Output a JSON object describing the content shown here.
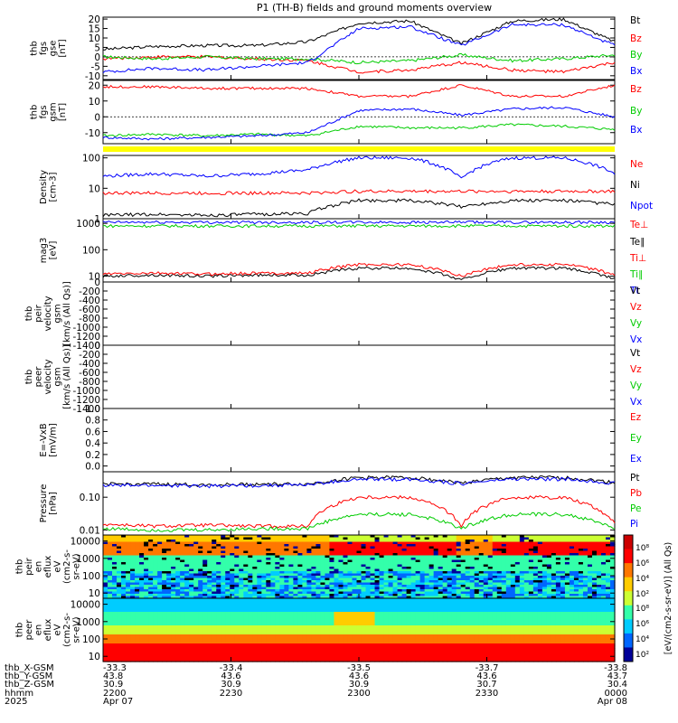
{
  "title": "P1 (TH-B) fields and ground moments overview",
  "chart_data": {
    "type": "line",
    "title": "P1 (TH-B) fields and ground moments overview",
    "time_axis": {
      "rows": [
        {
          "label": "thb_X-GSM",
          "values": [
            "-33.3",
            "-33.4",
            "-33.5",
            "-33.7",
            "-33.8"
          ]
        },
        {
          "label": "thb_Y-GSM",
          "values": [
            "43.8",
            "43.6",
            "43.6",
            "43.6",
            "43.7"
          ]
        },
        {
          "label": "thb_Z-GSM",
          "values": [
            "30.9",
            "30.9",
            "30.9",
            "30.7",
            "30.4"
          ]
        },
        {
          "label": "hhmm",
          "values": [
            "2200",
            "2230",
            "2300",
            "2330",
            "0000"
          ]
        },
        {
          "label": "2025",
          "values": [
            "Apr 07",
            "",
            "",
            "",
            "Apr 08"
          ]
        }
      ]
    },
    "panels": [
      {
        "id": "fgs-gse",
        "ylabel": [
          "thb",
          "fgs",
          "gse",
          "[nT]"
        ],
        "yscale": "linear",
        "ylim": [
          -12,
          21
        ],
        "ticks": [
          "20",
          "15",
          "10",
          "5",
          "0",
          "-5",
          "-10"
        ],
        "tick_values": [
          20,
          15,
          10,
          5,
          0,
          -5,
          -10
        ],
        "dashed_zero": true,
        "series": [
          {
            "name": "Bt",
            "color": "#000000",
            "values": [
              4,
              5.5,
              6,
              6,
              8,
              18,
              19,
              7,
              19,
              20,
              8
            ]
          },
          {
            "name": "Bz",
            "color": "#ff0000",
            "values": [
              -1,
              0,
              0,
              -1,
              -2,
              -8,
              -7,
              -3,
              -7,
              -8,
              -3
            ]
          },
          {
            "name": "By",
            "color": "#00cc00",
            "values": [
              0,
              -1,
              0,
              -1,
              -1,
              -3,
              -2,
              1,
              -2,
              -1,
              1
            ]
          },
          {
            "name": "Bx",
            "color": "#0000ff",
            "values": [
              -8,
              -6,
              -7,
              -5,
              -3,
              15,
              16,
              6,
              17,
              17,
              6
            ]
          }
        ]
      },
      {
        "id": "fgs-gsm",
        "ylabel": [
          "thb",
          "fgs",
          "gsm",
          "[nT]"
        ],
        "yscale": "linear",
        "ylim": [
          -17,
          23
        ],
        "ticks": [
          "20",
          "10",
          "0",
          "-10"
        ],
        "tick_values": [
          20,
          10,
          0,
          -10
        ],
        "dashed_zero": true,
        "series": [
          {
            "name": "Bz",
            "color": "#ff0000",
            "values": [
              19,
              19,
              18,
              18,
              18,
              13,
              13,
              20,
              13,
              13,
              20
            ]
          },
          {
            "name": "By",
            "color": "#00cc00",
            "values": [
              -12,
              -11,
              -12,
              -11,
              -12,
              -6,
              -7,
              -7,
              -5,
              -6,
              -8
            ]
          },
          {
            "name": "Bx",
            "color": "#0000ff",
            "values": [
              -13,
              -14,
              -13,
              -12,
              -10,
              4,
              5,
              1,
              5,
              6,
              0
            ]
          }
        ]
      },
      {
        "id": "density",
        "ylabel": [
          "Density",
          "[cm-3]"
        ],
        "yscale": "log",
        "ylim": [
          1,
          120
        ],
        "ticks": [
          "100",
          "10",
          "1"
        ],
        "tick_values": [
          100,
          10,
          1
        ],
        "series": [
          {
            "name": "Ne",
            "color": "#ff0000",
            "values": [
              7,
              7,
              7,
              7,
              7,
              8,
              8,
              8,
              8,
              8,
              8
            ]
          },
          {
            "name": "Ni",
            "color": "#000000",
            "values": [
              1.3,
              1.4,
              1.3,
              1.4,
              1.5,
              4,
              4,
              2.5,
              4,
              4,
              3
            ]
          },
          {
            "name": "Npot",
            "color": "#0000ff",
            "values": [
              25,
              30,
              25,
              30,
              40,
              100,
              100,
              20,
              100,
              100,
              30
            ]
          },
          {
            "name": "Te⊥",
            "color": "#ff0000",
            "values": []
          }
        ]
      },
      {
        "id": "temperature",
        "ylabel": [
          "mag3",
          "[eV]"
        ],
        "yscale": "log",
        "ylim": [
          6,
          1500
        ],
        "ticks": [
          "1000",
          "100",
          "10"
        ],
        "tick_values": [
          1000,
          100,
          10
        ],
        "series": [
          {
            "name": "Te∥",
            "color": "#000000",
            "values": [
              10,
              11,
              10,
              11,
              11,
              20,
              20,
              7,
              20,
              20,
              8
            ]
          },
          {
            "name": "Ti⊥",
            "color": "#ff0000",
            "values": [
              12,
              13,
              12,
              13,
              13,
              28,
              27,
              10,
              27,
              28,
              11
            ]
          },
          {
            "name": "Ti∥",
            "color": "#00cc00",
            "values": [
              800,
              800,
              800,
              800,
              800,
              800,
              800,
              800,
              800,
              800,
              800
            ]
          },
          {
            "name": "Tt",
            "color": "#0000ff",
            "values": [
              1100,
              1100,
              1100,
              1100,
              1100,
              1100,
              1100,
              1100,
              1100,
              1100,
              1100
            ]
          }
        ]
      },
      {
        "id": "peir-velocity",
        "ylabel": [
          "thb",
          "peir",
          "velocity",
          "gsm",
          "[km/s (All Qs)]"
        ],
        "yscale": "linear",
        "ylim": [
          -1400,
          0
        ],
        "ticks": [
          "0",
          "-200",
          "-400",
          "-600",
          "-800",
          "-1000",
          "-1200",
          "-1400"
        ],
        "tick_values": [
          0,
          -200,
          -400,
          -600,
          -800,
          -1000,
          -1200,
          -1400
        ],
        "series": [
          {
            "name": "Vt",
            "color": "#000000",
            "values": []
          },
          {
            "name": "Vz",
            "color": "#ff0000",
            "values": []
          },
          {
            "name": "Vy",
            "color": "#00cc00",
            "values": []
          },
          {
            "name": "Vx",
            "color": "#0000ff",
            "values": []
          }
        ]
      },
      {
        "id": "peer-velocity",
        "ylabel": [
          "thb",
          "peer",
          "velocity",
          "gsm",
          "[km/s (All Qs)]"
        ],
        "yscale": "linear",
        "ylim": [
          -1400,
          0
        ],
        "ticks": [
          "0",
          "-200",
          "-400",
          "-600",
          "-800",
          "-1000",
          "-1200",
          "-1400"
        ],
        "tick_values": [
          0,
          -200,
          -400,
          -600,
          -800,
          -1000,
          -1200,
          -1400
        ],
        "series": [
          {
            "name": "Vt",
            "color": "#000000",
            "values": []
          },
          {
            "name": "Vz",
            "color": "#ff0000",
            "values": []
          },
          {
            "name": "Vy",
            "color": "#00cc00",
            "values": []
          },
          {
            "name": "Vx",
            "color": "#0000ff",
            "values": []
          }
        ]
      },
      {
        "id": "efield",
        "ylabel": [
          "E=-VxB",
          "[mV/m]"
        ],
        "yscale": "linear",
        "ylim": [
          -0.1,
          1.0
        ],
        "ticks": [
          "1.0",
          "0.8",
          "0.6",
          "0.4",
          "0.2",
          "0.0"
        ],
        "tick_values": [
          1.0,
          0.8,
          0.6,
          0.4,
          0.2,
          0.0
        ],
        "series": [
          {
            "name": "Ez",
            "color": "#ff0000",
            "values": []
          },
          {
            "name": "Ey",
            "color": "#00cc00",
            "values": []
          },
          {
            "name": "Ex",
            "color": "#0000ff",
            "values": []
          }
        ]
      },
      {
        "id": "pressure",
        "ylabel": [
          "Pressure",
          "[nPa]"
        ],
        "yscale": "log",
        "ylim": [
          0.007,
          0.6
        ],
        "ticks": [
          "0.10",
          "0.01"
        ],
        "tick_values": [
          0.1,
          0.01
        ],
        "series": [
          {
            "name": "Pt",
            "color": "#000000",
            "values": [
              0.25,
              0.25,
              0.24,
              0.25,
              0.25,
              0.4,
              0.4,
              0.27,
              0.4,
              0.4,
              0.28
            ]
          },
          {
            "name": "Pb",
            "color": "#ff0000",
            "values": [
              0.015,
              0.013,
              0.014,
              0.013,
              0.013,
              0.1,
              0.1,
              0.012,
              0.1,
              0.1,
              0.015
            ]
          },
          {
            "name": "Pe",
            "color": "#00cc00",
            "values": [
              0.011,
              0.01,
              0.01,
              0.011,
              0.011,
              0.03,
              0.03,
              0.011,
              0.03,
              0.03,
              0.011
            ]
          },
          {
            "name": "Pi",
            "color": "#0000ff",
            "values": [
              0.23,
              0.23,
              0.22,
              0.23,
              0.24,
              0.35,
              0.36,
              0.26,
              0.36,
              0.36,
              0.27
            ]
          }
        ]
      },
      {
        "id": "peir-eflux",
        "ylabel": [
          "thb",
          "peir",
          "en",
          "eflux",
          "eV",
          "(cm2-s-",
          "sr-eV)"
        ],
        "type": "heatmap",
        "yscale": "log",
        "ylim": [
          5,
          22000
        ],
        "ticks": [
          "10000",
          "1000",
          "100",
          "10"
        ],
        "tick_values": [
          10000,
          1000,
          100,
          10
        ]
      },
      {
        "id": "peer-eflux",
        "ylabel": [
          "thb",
          "peer",
          "en",
          "eflux",
          "eV",
          "(cm2-s-",
          "sr-eV)"
        ],
        "type": "heatmap",
        "yscale": "log",
        "ylim": [
          5,
          22000
        ],
        "ticks": [
          "10000",
          "1000",
          "100",
          "10"
        ],
        "tick_values": [
          10000,
          1000,
          100,
          10
        ]
      }
    ],
    "colorbar": {
      "label": "[eV/(cm2-s-sr-eV)] (All Qs)",
      "ticks": [
        "10⁸",
        "10⁶",
        "10⁴",
        "10²"
      ],
      "ticks2": [
        "10⁸",
        "10⁶",
        "10⁴",
        "10²"
      ]
    }
  }
}
